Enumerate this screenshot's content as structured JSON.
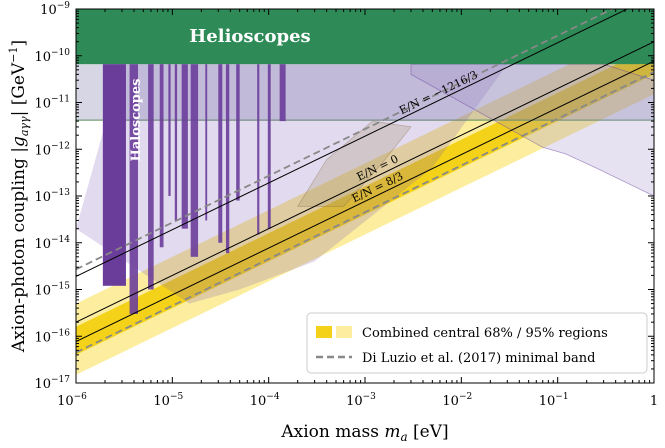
{
  "chart_data": {
    "type": "area",
    "xscale": "log",
    "yscale": "log",
    "xlim": [
      1e-06,
      1
    ],
    "ylim": [
      1e-17,
      1e-09
    ],
    "xlabel_main": "Axion mass ",
    "xlabel_sym": "m",
    "xlabel_sub": "a",
    "xlabel_unit": " [eV]",
    "ylabel_main": "Axion-photon coupling |",
    "ylabel_sym": "g",
    "ylabel_sub": "aγγ",
    "ylabel_unit": "| [GeV",
    "ylabel_sup": "−1",
    "ylabel_close": "]",
    "x_ticks": [
      {
        "value": 1e-06,
        "base": "10",
        "exp": "−6"
      },
      {
        "value": 1e-05,
        "base": "10",
        "exp": "−5"
      },
      {
        "value": 0.0001,
        "base": "10",
        "exp": "−4"
      },
      {
        "value": 0.001,
        "base": "10",
        "exp": "−3"
      },
      {
        "value": 0.01,
        "base": "10",
        "exp": "−2"
      },
      {
        "value": 0.1,
        "base": "10",
        "exp": "−1"
      },
      {
        "value": 1,
        "base": "1",
        "exp": ""
      }
    ],
    "y_ticks": [
      {
        "value": 1e-17,
        "base": "10",
        "exp": "−17"
      },
      {
        "value": 1e-16,
        "base": "10",
        "exp": "−16"
      },
      {
        "value": 1e-15,
        "base": "10",
        "exp": "−15"
      },
      {
        "value": 1e-14,
        "base": "10",
        "exp": "−14"
      },
      {
        "value": 1e-13,
        "base": "10",
        "exp": "−13"
      },
      {
        "value": 1e-12,
        "base": "10",
        "exp": "−12"
      },
      {
        "value": 1e-11,
        "base": "10",
        "exp": "−11"
      },
      {
        "value": 1e-10,
        "base": "10",
        "exp": "−10"
      },
      {
        "value": 1e-09,
        "base": "10",
        "exp": "−9"
      }
    ],
    "bands": {
      "outer95": {
        "lower_coef": 1.5e-11,
        "upper_coef": 5e-10,
        "color": "#fcee9e"
      },
      "inner68": {
        "lower_coef": 4e-11,
        "upper_coef": 1.6e-10,
        "color": "#f4d21a"
      },
      "diluzio_dashed_coefs": [
        4.5e-11,
        2.7e-09
      ],
      "dashed_color": "#888888"
    },
    "model_lines": [
      {
        "label": "E/N = −1216/3",
        "coef": 1.9e-09,
        "label_mass": 0.006
      },
      {
        "label": "E/N = 0",
        "coef": 2e-10,
        "label_mass": 0.0014
      },
      {
        "label": "E/N = 8/3",
        "coef": 7.7e-11,
        "label_mass": 0.0014
      }
    ],
    "helioscopes": {
      "label": "Helioscopes",
      "g_bound": 6.6e-11,
      "color": "#2e8b57"
    },
    "haloscopes": {
      "label": "Haloscopes",
      "color": "#6a3d9a",
      "main_block": {
        "m_min": 1.9e-06,
        "m_max": 3.3e-06,
        "g_top": 6.6e-11,
        "g_bottom": 1.2e-15
      },
      "spikes": [
        {
          "m1": 3.6e-06,
          "m2": 4.4e-06,
          "g_bottom": 3e-16
        },
        {
          "m1": 5.6e-06,
          "m2": 6.4e-06,
          "g_bottom": 1e-15
        },
        {
          "m1": 7.4e-06,
          "m2": 8.1e-06,
          "g_bottom": 8e-15
        },
        {
          "m1": 9.1e-06,
          "m2": 9.6e-06,
          "g_bottom": 1e-13
        },
        {
          "m1": 1.06e-05,
          "m2": 1.12e-05,
          "g_bottom": 3e-14
        },
        {
          "m1": 1.25e-05,
          "m2": 1.45e-05,
          "g_bottom": 2e-14
        },
        {
          "m1": 1.55e-05,
          "m2": 1.85e-05,
          "g_bottom": 5e-15
        },
        {
          "m1": 2.2e-05,
          "m2": 2.3e-05,
          "g_bottom": 3e-14
        },
        {
          "m1": 3e-05,
          "m2": 3.3e-05,
          "g_bottom": 1e-14
        },
        {
          "m1": 3.6e-05,
          "m2": 3.9e-05,
          "g_bottom": 6e-15
        },
        {
          "m1": 4.6e-05,
          "m2": 5e-05,
          "g_bottom": 8e-14
        },
        {
          "m1": 7.6e-05,
          "m2": 8e-05,
          "g_bottom": 1.5e-14
        },
        {
          "m1": 9.8e-05,
          "m2": 0.000105,
          "g_bottom": 2e-14
        },
        {
          "m1": 0.00013,
          "m2": 0.00015,
          "g_bottom": 4e-12
        }
      ]
    },
    "legend": {
      "position": "lower-right",
      "entries": [
        {
          "label": "Combined central 68% / 95% regions",
          "style": "patches"
        },
        {
          "label": "Di Luzio et al. (2017) minimal band",
          "style": "dashed"
        }
      ]
    }
  }
}
